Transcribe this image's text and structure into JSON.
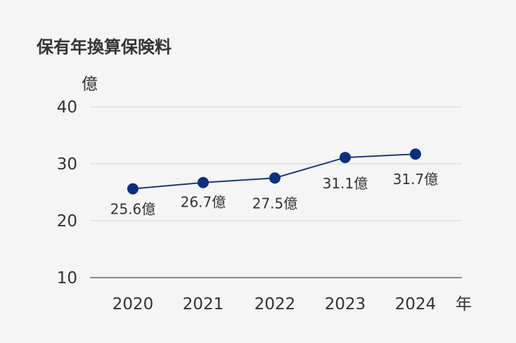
{
  "chart_data": {
    "type": "line",
    "title": "保有年換算保険料",
    "y_unit": "億",
    "x_unit": "年",
    "categories": [
      "2020",
      "2021",
      "2022",
      "2023",
      "2024"
    ],
    "series": [
      {
        "values": [
          25.6,
          26.7,
          27.5,
          31.1,
          31.7
        ]
      }
    ],
    "data_labels": [
      "25.6億",
      "26.7億",
      "27.5億",
      "31.1億",
      "31.7億"
    ],
    "ylim": [
      10,
      40
    ],
    "y_ticks": [
      "10",
      "20",
      "30",
      "40"
    ],
    "grid": true,
    "colors": {
      "line": "#1a3a7a",
      "marker": "#0b2f7f",
      "grid": "#d9d9d9",
      "axis": "#666666",
      "text": "#333333",
      "background": "#f5f5f5"
    }
  }
}
